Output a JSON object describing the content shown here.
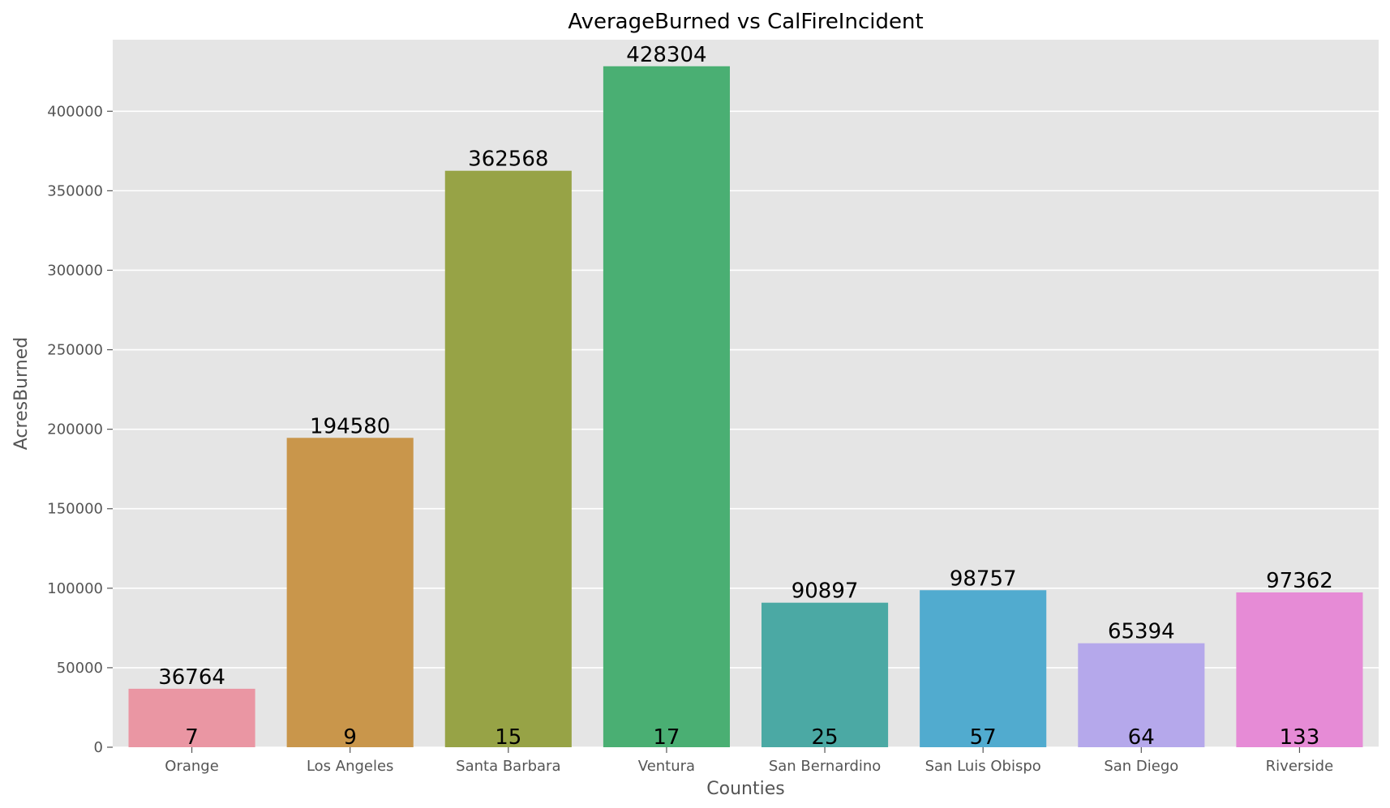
{
  "chart_data": {
    "type": "bar",
    "title": "AverageBurned vs CalFireIncident",
    "xlabel": "Counties",
    "ylabel": "AcresBurned",
    "categories": [
      "Orange",
      "Los Angeles",
      "Santa Barbara",
      "Ventura",
      "San Bernardino",
      "San Luis Obispo",
      "San Diego",
      "Riverside"
    ],
    "values": [
      36764,
      194580,
      362568,
      428304,
      90897,
      98757,
      65394,
      97362
    ],
    "counts": [
      7,
      9,
      15,
      17,
      25,
      57,
      64,
      133
    ],
    "colors": [
      "#ea96a3",
      "#c9964b",
      "#97a346",
      "#4aaf73",
      "#4ba9a4",
      "#51abcf",
      "#b5a8eb",
      "#e68bd6"
    ],
    "ylim": [
      0,
      445000
    ],
    "yticks": [
      0,
      50000,
      100000,
      150000,
      200000,
      250000,
      300000,
      350000,
      400000
    ],
    "grid": true,
    "background": "#e5e5e5"
  }
}
